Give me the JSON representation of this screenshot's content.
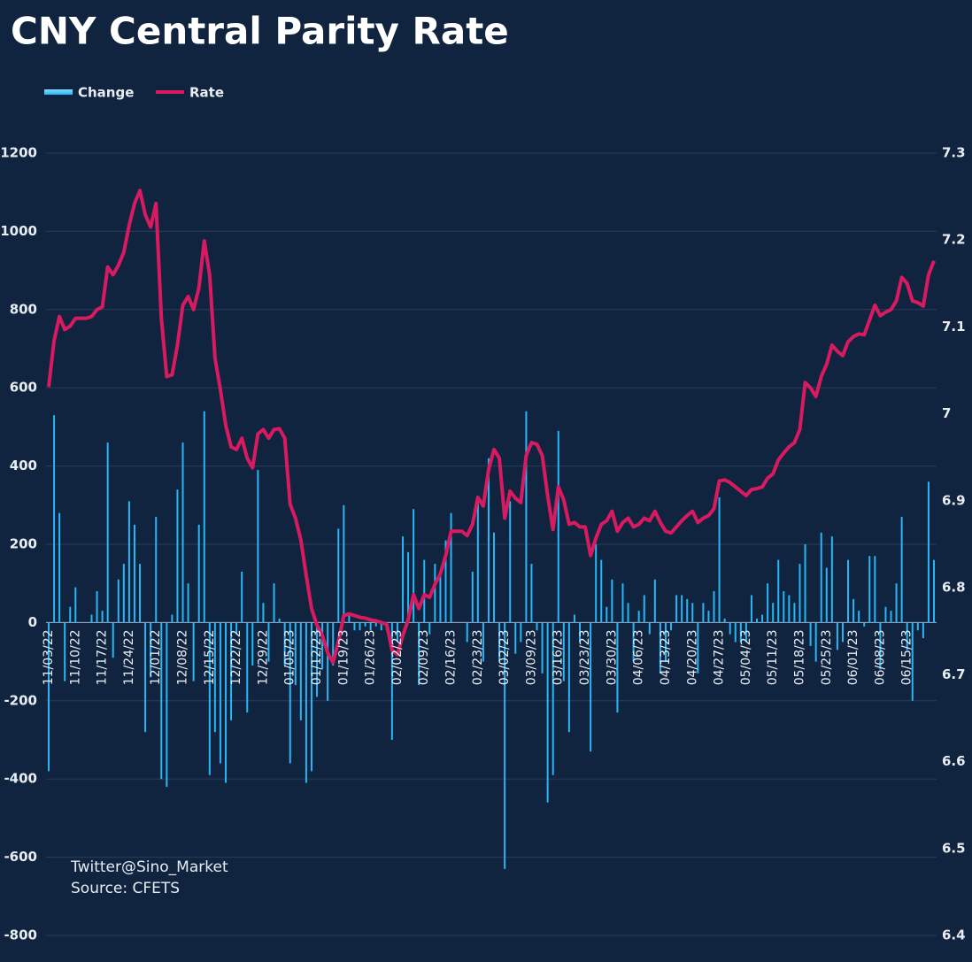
{
  "chart_data": {
    "type": "combo",
    "title": "CNY Central Parity Rate",
    "annotations": [
      "Twitter@Sino_Market",
      "Source: CFETS"
    ],
    "legend": "top-left",
    "grid": true,
    "categories": [
      "11/03/22",
      null,
      null,
      null,
      null,
      "11/10/22",
      null,
      null,
      null,
      null,
      "11/17/22",
      null,
      null,
      null,
      null,
      "11/24/22",
      null,
      null,
      null,
      null,
      "12/01/22",
      null,
      null,
      null,
      null,
      "12/08/22",
      null,
      null,
      null,
      null,
      "12/15/22",
      null,
      null,
      null,
      null,
      "12/22/22",
      null,
      null,
      null,
      null,
      "12/29/22",
      null,
      null,
      null,
      null,
      "01/05/23",
      null,
      null,
      null,
      null,
      "01/12/23",
      null,
      null,
      null,
      null,
      "01/19/23",
      null,
      null,
      null,
      null,
      "01/26/23",
      null,
      null,
      null,
      null,
      "02/02/23",
      null,
      null,
      null,
      null,
      "02/09/23",
      null,
      null,
      null,
      null,
      "02/16/23",
      null,
      null,
      null,
      null,
      "02/23/23",
      null,
      null,
      null,
      null,
      "03/02/23",
      null,
      null,
      null,
      null,
      "03/09/23",
      null,
      null,
      null,
      null,
      "03/16/23",
      null,
      null,
      null,
      null,
      "03/23/23",
      null,
      null,
      null,
      null,
      "03/30/23",
      null,
      null,
      null,
      null,
      "04/06/23",
      null,
      null,
      null,
      null,
      "04/13/23",
      null,
      null,
      null,
      null,
      "04/20/23",
      null,
      null,
      null,
      null,
      "04/27/23",
      null,
      null,
      null,
      null,
      "05/04/23",
      null,
      null,
      null,
      null,
      "05/11/23",
      null,
      null,
      null,
      null,
      "05/18/23",
      null,
      null,
      null,
      null,
      "05/25/23",
      null,
      null,
      null,
      null,
      "06/01/23",
      null,
      null,
      null,
      null,
      "06/08/23",
      null,
      null,
      null,
      null,
      "06/15/23",
      null,
      null,
      null,
      null,
      null
    ],
    "ylim": [
      -800,
      1200
    ],
    "yticks": [
      -800,
      -600,
      -400,
      -200,
      0,
      200,
      400,
      600,
      800,
      1000,
      1200
    ],
    "y2lim": [
      6.4,
      7.3
    ],
    "y2ticks": [
      6.4,
      6.5,
      6.6,
      6.7,
      6.8,
      6.9,
      7,
      7.1,
      7.2,
      7.3
    ],
    "series": [
      {
        "name": "Change",
        "type": "bar",
        "axis": "y",
        "color": "#29b6f6",
        "values": [
          -380,
          530,
          280,
          -150,
          40,
          90,
          0,
          0,
          20,
          80,
          30,
          460,
          -90,
          110,
          150,
          310,
          250,
          150,
          -280,
          -140,
          270,
          -400,
          -420,
          20,
          340,
          460,
          100,
          -150,
          250,
          540,
          -390,
          -280,
          -360,
          -410,
          -250,
          -30,
          130,
          -230,
          -110,
          390,
          50,
          -100,
          100,
          10,
          -110,
          -360,
          -160,
          -250,
          -410,
          -380,
          -190,
          -120,
          -200,
          -110,
          240,
          300,
          20,
          -20,
          -20,
          -10,
          -20,
          -10,
          -20,
          -20,
          -300,
          -50,
          220,
          180,
          290,
          -160,
          160,
          -30,
          150,
          120,
          210,
          280,
          0,
          0,
          -50,
          130,
          310,
          -100,
          420,
          230,
          -100,
          -630,
          310,
          -80,
          -50,
          540,
          150,
          -20,
          -130,
          -460,
          -390,
          490,
          -150,
          -280,
          20,
          -50,
          0,
          -330,
          200,
          160,
          40,
          110,
          -230,
          100,
          50,
          -100,
          30,
          70,
          -30,
          110,
          -130,
          -100,
          -20,
          70,
          70,
          60,
          50,
          -130,
          50,
          30,
          80,
          320,
          10,
          -30,
          -50,
          -50,
          -50,
          70,
          10,
          20,
          100,
          50,
          160,
          80,
          70,
          50,
          150,
          200,
          -60,
          -100,
          230,
          140,
          220,
          -70,
          -50,
          160,
          60,
          30,
          -10,
          170,
          170,
          -120,
          40,
          30,
          100,
          270,
          -70,
          -200,
          -20,
          -40,
          360,
          160
        ]
      },
      {
        "name": "Rate",
        "type": "line",
        "axis": "y2",
        "color": "#d81b60",
        "values": [
          7.031,
          7.084,
          7.112,
          7.097,
          7.101,
          7.11,
          7.11,
          7.11,
          7.112,
          7.12,
          7.123,
          7.169,
          7.16,
          7.171,
          7.186,
          7.217,
          7.242,
          7.257,
          7.229,
          7.215,
          7.242,
          7.11,
          7.043,
          7.045,
          7.079,
          7.125,
          7.135,
          7.12,
          7.145,
          7.199,
          7.16,
          7.064,
          7.028,
          6.987,
          6.962,
          6.959,
          6.972,
          6.949,
          6.938,
          6.977,
          6.982,
          6.972,
          6.982,
          6.983,
          6.972,
          6.896,
          6.88,
          6.855,
          6.814,
          6.776,
          6.757,
          6.745,
          6.725,
          6.714,
          6.738,
          6.768,
          6.77,
          6.768,
          6.766,
          6.765,
          6.763,
          6.762,
          6.76,
          6.758,
          6.728,
          6.723,
          6.745,
          6.763,
          6.792,
          6.776,
          6.792,
          6.789,
          6.804,
          6.816,
          6.837,
          6.865,
          6.865,
          6.865,
          6.86,
          6.873,
          6.904,
          6.894,
          6.936,
          6.959,
          6.949,
          6.88,
          6.911,
          6.903,
          6.898,
          6.952,
          6.967,
          6.965,
          6.952,
          6.906,
          6.867,
          6.916,
          6.901,
          6.873,
          6.875,
          6.87,
          6.87,
          6.837,
          6.857,
          6.873,
          6.877,
          6.888,
          6.865,
          6.875,
          6.88,
          6.87,
          6.873,
          6.88,
          6.877,
          6.888,
          6.875,
          6.865,
          6.863,
          6.87,
          6.877,
          6.883,
          6.888,
          6.875,
          6.88,
          6.883,
          6.891,
          6.923,
          6.924,
          6.921,
          6.916,
          6.911,
          6.906,
          6.913,
          6.914,
          6.916,
          6.926,
          6.931,
          6.947,
          6.955,
          6.962,
          6.967,
          6.982,
          7.036,
          7.03,
          7.02,
          7.043,
          7.057,
          7.079,
          7.072,
          7.067,
          7.083,
          7.089,
          7.092,
          7.091,
          7.108,
          7.125,
          7.113,
          7.117,
          7.12,
          7.13,
          7.157,
          7.15,
          7.13,
          7.128,
          7.124,
          7.16,
          7.176
        ]
      }
    ]
  }
}
